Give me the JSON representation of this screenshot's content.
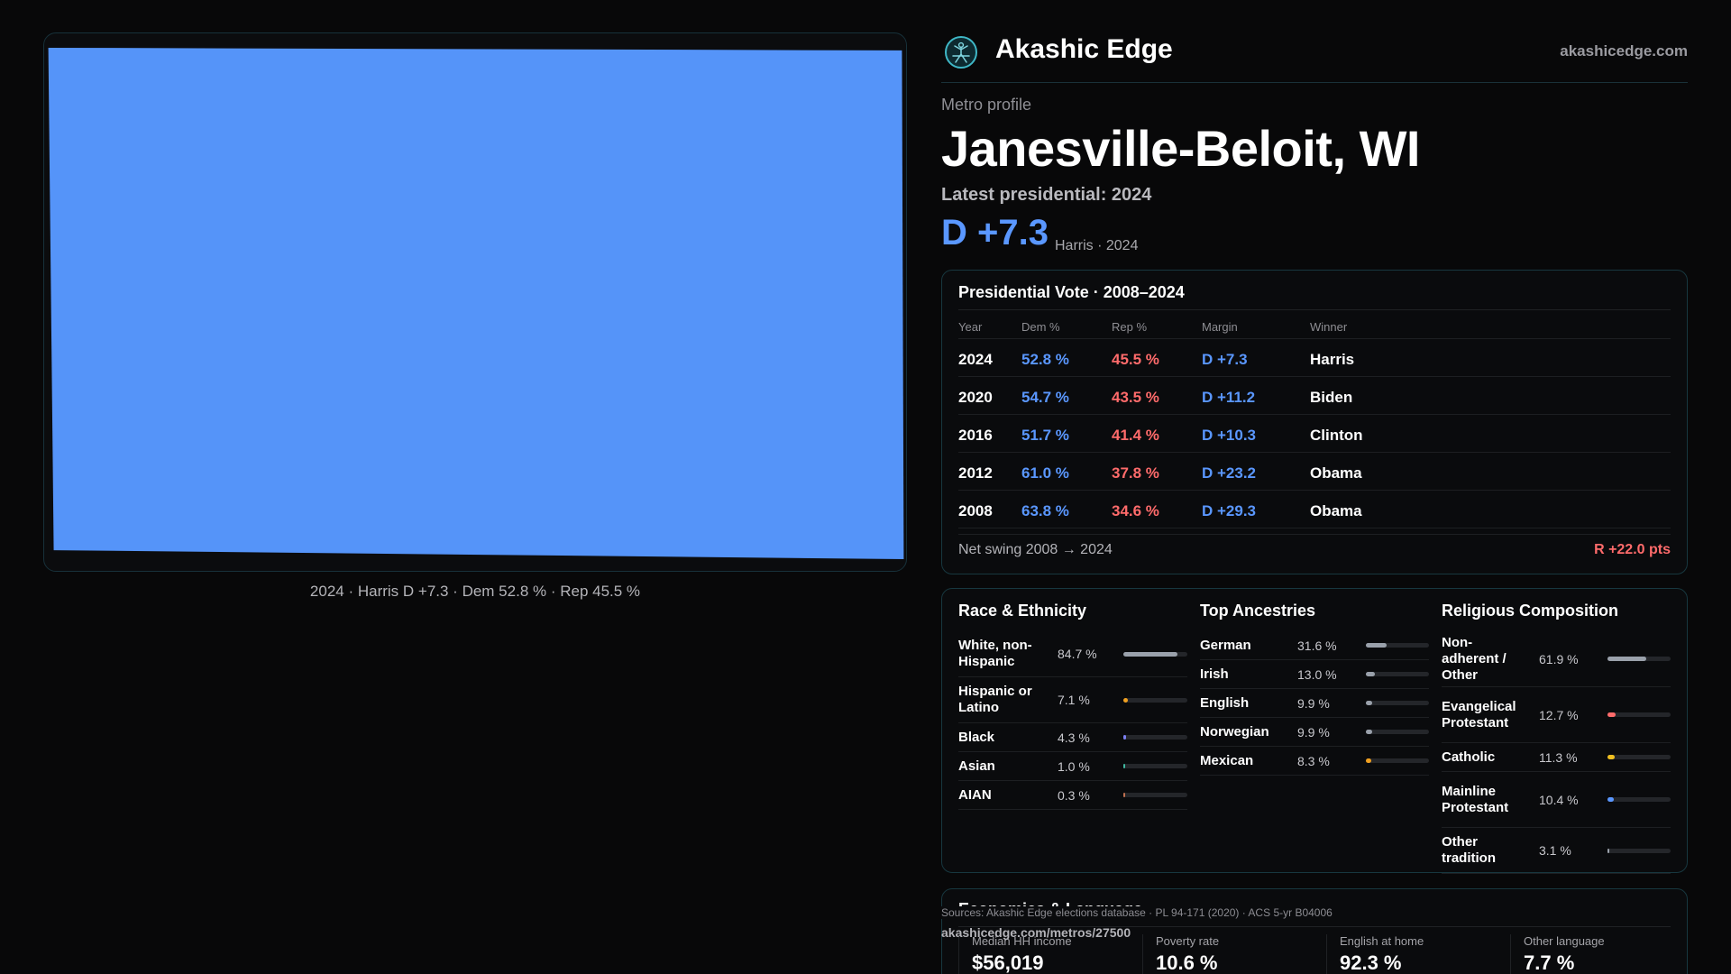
{
  "header": {
    "brand": "Akashic Edge",
    "site": "akashicedge.com"
  },
  "metro": {
    "eyebrow": "Metro profile",
    "name": "Janesville-Beloit, WI",
    "latest_label": "Latest presidential: 2024",
    "margin": "D +7.3",
    "margin_sub": "Harris · 2024"
  },
  "map": {
    "caption": "2024 · Harris D +7.3 · Dem 52.8 % · Rep 45.5 %",
    "fill_color": "#5594f9"
  },
  "vote_table": {
    "title": "Presidential Vote · 2008–2024",
    "columns": [
      "Year",
      "Dem %",
      "Rep %",
      "Margin",
      "Winner"
    ],
    "rows": [
      {
        "year": "2024",
        "dem": "52.8 %",
        "rep": "45.5 %",
        "margin": "D +7.3",
        "winner": "Harris"
      },
      {
        "year": "2020",
        "dem": "54.7 %",
        "rep": "43.5 %",
        "margin": "D +11.2",
        "winner": "Biden"
      },
      {
        "year": "2016",
        "dem": "51.7 %",
        "rep": "41.4 %",
        "margin": "D +10.3",
        "winner": "Clinton"
      },
      {
        "year": "2012",
        "dem": "61.0 %",
        "rep": "37.8 %",
        "margin": "D +23.2",
        "winner": "Obama"
      },
      {
        "year": "2008",
        "dem": "63.8 %",
        "rep": "34.6 %",
        "margin": "D +29.3",
        "winner": "Obama"
      }
    ],
    "swing_label": "Net swing 2008 → 2024",
    "swing_value": "R +22.0 pts"
  },
  "race": {
    "title": "Race & Ethnicity",
    "items": [
      {
        "label": "White, non-Hispanic",
        "value": "84.7 %",
        "pct": 84.7,
        "color": "#9aa1ab"
      },
      {
        "label": "Hispanic or Latino",
        "value": "7.1 %",
        "pct": 7.1,
        "color": "#f0a020"
      },
      {
        "label": "Black",
        "value": "4.3 %",
        "pct": 4.3,
        "color": "#7b7ff0"
      },
      {
        "label": "Asian",
        "value": "1.0 %",
        "pct": 1.0,
        "color": "#3fb7a0"
      },
      {
        "label": "AIAN",
        "value": "0.3 %",
        "pct": 0.3,
        "color": "#c07050"
      }
    ]
  },
  "ancestry": {
    "title": "Top Ancestries",
    "items": [
      {
        "label": "German",
        "value": "31.6 %",
        "pct": 31.6,
        "color": "#9aa1ab"
      },
      {
        "label": "Irish",
        "value": "13.0 %",
        "pct": 13.0,
        "color": "#9aa1ab"
      },
      {
        "label": "English",
        "value": "9.9 %",
        "pct": 9.9,
        "color": "#9aa1ab"
      },
      {
        "label": "Norwegian",
        "value": "9.9 %",
        "pct": 9.9,
        "color": "#9aa1ab"
      },
      {
        "label": "Mexican",
        "value": "8.3 %",
        "pct": 8.3,
        "color": "#f0a020"
      }
    ]
  },
  "religion": {
    "title": "Religious Composition",
    "items": [
      {
        "label": "Non-adherent / Other",
        "value": "61.9 %",
        "pct": 61.9,
        "color": "#9aa1ab"
      },
      {
        "label": "Evangelical Protestant",
        "value": "12.7 %",
        "pct": 12.7,
        "color": "#ff6b6b"
      },
      {
        "label": "Catholic",
        "value": "11.3 %",
        "pct": 11.3,
        "color": "#f0c020"
      },
      {
        "label": "Mainline Protestant",
        "value": "10.4 %",
        "pct": 10.4,
        "color": "#5a97ff"
      },
      {
        "label": "Other tradition",
        "value": "3.1 %",
        "pct": 3.1,
        "color": "#9aa1ab"
      }
    ]
  },
  "economics": {
    "title": "Economics & Language",
    "stats": [
      {
        "label": "Median HH income",
        "value": "$56,019"
      },
      {
        "label": "Poverty rate",
        "value": "10.6 %"
      },
      {
        "label": "English at home",
        "value": "92.3 %"
      },
      {
        "label": "Other language",
        "value": "7.7 %"
      }
    ]
  },
  "footer": {
    "sources": "Sources: Akashic Edge elections database · PL 94-171 (2020) · ACS 5-yr B04006",
    "url": "akashicedge.com/metros/27500"
  }
}
